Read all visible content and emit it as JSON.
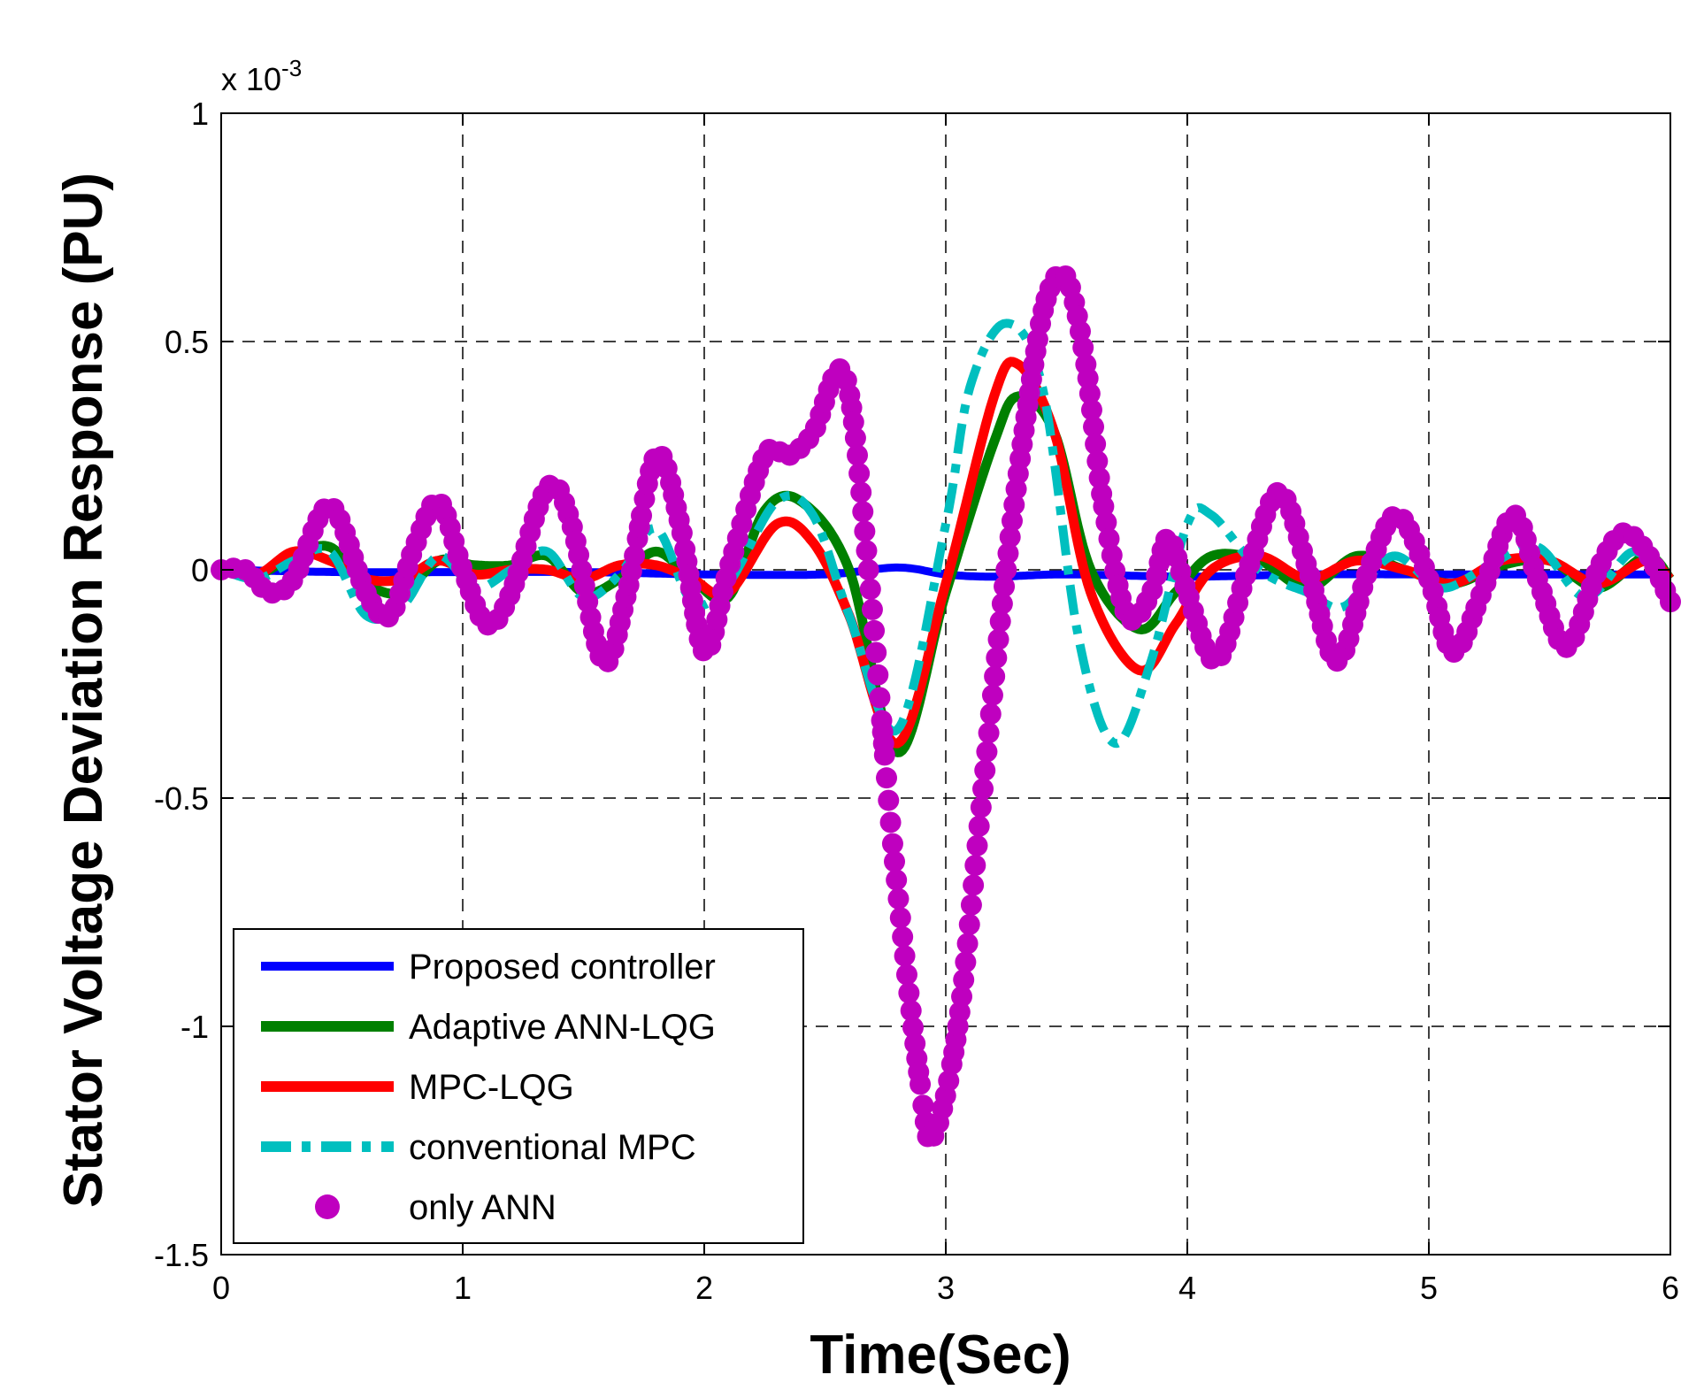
{
  "chart_data": {
    "type": "line",
    "title": "",
    "xlabel": "Time(Sec)",
    "ylabel": "Stator Voltage Deviation Response  (PU)",
    "y_multiplier_label": "x 10",
    "y_multiplier_exp": "-3",
    "xlim": [
      0,
      6
    ],
    "ylim": [
      -1.5,
      1
    ],
    "x_ticks": [
      0,
      1,
      2,
      3,
      4,
      5,
      6
    ],
    "x_tick_labels": [
      "0",
      "1",
      "2",
      "3",
      "4",
      "5",
      "6"
    ],
    "y_ticks": [
      -1.5,
      -1,
      -0.5,
      0,
      0.5,
      1
    ],
    "y_tick_labels": [
      "-1.5",
      "-1",
      "-0.5",
      "0",
      "0.5",
      "1"
    ],
    "grid": true,
    "legend_position": "bottom-left",
    "series": [
      {
        "name": "Proposed controller",
        "color": "#0000ff",
        "style": "solid",
        "x": [
          0,
          0.5,
          1,
          1.5,
          2,
          2.5,
          2.8,
          3,
          3.2,
          3.5,
          4,
          4.5,
          5,
          5.5,
          6
        ],
        "y": [
          0,
          -0.005,
          -0.005,
          -0.005,
          -0.01,
          -0.01,
          0.005,
          -0.01,
          -0.015,
          -0.01,
          -0.015,
          -0.01,
          -0.01,
          -0.01,
          -0.01
        ]
      },
      {
        "name": "Adaptive ANN-LQG",
        "color": "#008000",
        "style": "solid-marker",
        "x": [
          0,
          0.15,
          0.3,
          0.45,
          0.6,
          0.75,
          0.9,
          1.05,
          1.2,
          1.35,
          1.5,
          1.65,
          1.8,
          1.95,
          2.1,
          2.25,
          2.4,
          2.6,
          2.8,
          3.0,
          3.2,
          3.3,
          3.45,
          3.6,
          3.8,
          3.95,
          4.1,
          4.3,
          4.5,
          4.7,
          4.9,
          5.1,
          5.3,
          5.5,
          5.7,
          5.9,
          6.0
        ],
        "y": [
          0,
          -0.01,
          0.03,
          0.05,
          -0.03,
          -0.05,
          0.02,
          0.01,
          0.01,
          0.03,
          -0.05,
          -0.02,
          0.04,
          -0.02,
          -0.06,
          0.13,
          0.15,
          0.0,
          -0.4,
          -0.05,
          0.28,
          0.38,
          0.3,
          0.0,
          -0.13,
          -0.05,
          0.03,
          0.02,
          -0.04,
          0.03,
          0.0,
          -0.03,
          0.01,
          0.02,
          -0.04,
          0.03,
          -0.02
        ]
      },
      {
        "name": " MPC-LQG",
        "color": "#ff0000",
        "style": "solid-marker",
        "x": [
          0,
          0.15,
          0.3,
          0.45,
          0.6,
          0.75,
          0.9,
          1.05,
          1.2,
          1.35,
          1.5,
          1.65,
          1.8,
          1.95,
          2.1,
          2.3,
          2.45,
          2.6,
          2.8,
          3.0,
          3.2,
          3.3,
          3.45,
          3.6,
          3.8,
          3.95,
          4.1,
          4.3,
          4.5,
          4.7,
          4.9,
          5.1,
          5.3,
          5.5,
          5.7,
          5.9,
          6.0
        ],
        "y": [
          0,
          -0.01,
          0.04,
          0.02,
          -0.02,
          -0.02,
          0.02,
          -0.01,
          0.0,
          0.0,
          -0.02,
          0.01,
          0.01,
          -0.02,
          -0.05,
          0.1,
          0.06,
          -0.1,
          -0.38,
          -0.03,
          0.38,
          0.45,
          0.3,
          -0.05,
          -0.22,
          -0.12,
          0.0,
          0.03,
          -0.02,
          0.02,
          0.0,
          -0.03,
          0.02,
          0.02,
          -0.03,
          0.02,
          -0.02
        ]
      },
      {
        "name": "conventional MPC",
        "color": "#00bfbf",
        "style": "dash-dot",
        "x": [
          0,
          0.15,
          0.3,
          0.45,
          0.6,
          0.75,
          0.9,
          1.05,
          1.2,
          1.35,
          1.5,
          1.65,
          1.8,
          1.95,
          2.1,
          2.3,
          2.45,
          2.6,
          2.8,
          3.0,
          3.1,
          3.25,
          3.4,
          3.55,
          3.7,
          3.85,
          4.0,
          4.1,
          4.3,
          4.5,
          4.65,
          4.85,
          5.05,
          5.25,
          5.45,
          5.65,
          5.85,
          6.0
        ],
        "y": [
          0,
          -0.02,
          0.02,
          0.04,
          -0.1,
          -0.08,
          0.03,
          -0.04,
          0.0,
          0.04,
          -0.06,
          -0.01,
          0.09,
          -0.07,
          -0.03,
          0.15,
          0.12,
          -0.1,
          -0.35,
          0.1,
          0.4,
          0.54,
          0.4,
          -0.15,
          -0.38,
          -0.2,
          0.1,
          0.12,
          0.0,
          -0.05,
          -0.08,
          0.03,
          -0.04,
          0.01,
          0.05,
          -0.06,
          0.04,
          -0.05
        ]
      },
      {
        "name": "only ANN",
        "color": "#bf00bf",
        "style": "circle-markers",
        "x": [
          0,
          0.1,
          0.2,
          0.3,
          0.45,
          0.6,
          0.7,
          0.8,
          0.9,
          1.0,
          1.1,
          1.2,
          1.35,
          1.45,
          1.58,
          1.68,
          1.8,
          1.9,
          2.0,
          2.1,
          2.25,
          2.35,
          2.45,
          2.58,
          2.68,
          2.78,
          2.9,
          2.95,
          3.05,
          3.15,
          3.25,
          3.35,
          3.42,
          3.5,
          3.58,
          3.65,
          3.75,
          3.85,
          3.92,
          4.0,
          4.12,
          4.25,
          4.38,
          4.5,
          4.62,
          4.75,
          4.87,
          5.0,
          5.1,
          5.22,
          5.35,
          5.45,
          5.57,
          5.7,
          5.8,
          5.9,
          6.0
        ],
        "y": [
          0,
          0.0,
          -0.05,
          -0.02,
          0.14,
          -0.05,
          -0.1,
          0.05,
          0.15,
          0.0,
          -0.12,
          -0.05,
          0.18,
          0.1,
          -0.2,
          -0.05,
          0.25,
          0.1,
          -0.18,
          0.0,
          0.25,
          0.25,
          0.3,
          0.43,
          0.0,
          -0.6,
          -1.15,
          -1.24,
          -1.0,
          -0.5,
          0.0,
          0.4,
          0.6,
          0.64,
          0.45,
          0.15,
          -0.1,
          -0.05,
          0.07,
          -0.05,
          -0.2,
          0.0,
          0.17,
          0.0,
          -0.2,
          0.0,
          0.12,
          -0.02,
          -0.18,
          -0.05,
          0.12,
          -0.02,
          -0.17,
          0.0,
          0.08,
          0.04,
          -0.07
        ]
      }
    ]
  }
}
